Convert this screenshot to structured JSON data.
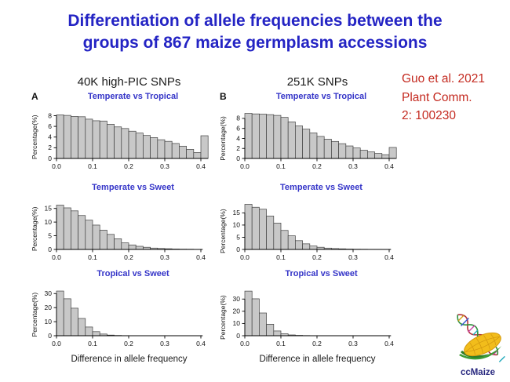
{
  "slide": {
    "title_line1": "Differentiation of allele frequencies between the",
    "title_line2": "groups of 867 maize germplasm accessions",
    "column_headers": [
      "40K high-PIC SNPs",
      "251K SNPs"
    ],
    "citation_lines": [
      "Guo et al. 2021",
      "Plant Comm.",
      "2: 100230"
    ],
    "xlabel": "Difference in allele frequency",
    "logo_text": "ccMaize"
  },
  "colors": {
    "title": "#2424c4",
    "subtitle": "#3535c8",
    "citation": "#c42a20",
    "bar_fill": "#c8c8c8",
    "bar_stroke": "#404040",
    "axis": "#000000",
    "tick_text": "#111111",
    "logo_text": "#2a2a80"
  },
  "chart_data": [
    {
      "type": "bar",
      "panel_label": "A",
      "group": "40K high-PIC SNPs",
      "title": "Temperate vs Tropical",
      "ylabel": "Percentage(%)",
      "bin_start": 0,
      "bin_width": 0.02,
      "values": [
        8.15,
        8.05,
        7.85,
        7.8,
        7.35,
        7.05,
        7.0,
        6.4,
        5.9,
        5.6,
        5.1,
        4.75,
        4.3,
        3.9,
        3.5,
        3.2,
        2.8,
        2.3,
        1.7,
        1.1,
        4.25
      ],
      "yticks": [
        0,
        2,
        4,
        6,
        8
      ],
      "ylim": [
        0,
        8.8
      ],
      "xticks": [
        0,
        0.1,
        0.2,
        0.3,
        0.4
      ],
      "x_axis_end": 0.42
    },
    {
      "type": "bar",
      "panel_label": "B",
      "group": "251K SNPs",
      "title": "Temperate vs Tropical",
      "ylabel": "Percentage(%)",
      "bin_start": 0,
      "bin_width": 0.02,
      "values": [
        9.0,
        8.9,
        8.85,
        8.75,
        8.6,
        8.2,
        7.3,
        6.5,
        5.85,
        5.1,
        4.4,
        3.85,
        3.4,
        2.95,
        2.5,
        2.1,
        1.65,
        1.3,
        1.0,
        0.75,
        2.2
      ],
      "yticks": [
        0,
        2,
        4,
        6,
        8
      ],
      "ylim": [
        0,
        9.4
      ],
      "xticks": [
        0,
        0.1,
        0.2,
        0.3,
        0.4
      ],
      "x_axis_end": 0.42
    },
    {
      "type": "bar",
      "panel_label": "",
      "group": "40K high-PIC SNPs",
      "title": "Temperate vs Sweet",
      "ylabel": "Percentage(%)",
      "bin_start": 0,
      "bin_width": 0.02,
      "values": [
        16.2,
        15.2,
        14.1,
        12.4,
        10.7,
        8.9,
        7.05,
        5.5,
        3.9,
        2.4,
        1.65,
        1.15,
        0.8,
        0.5,
        0.35,
        0.25,
        0.15,
        0.1,
        0.08
      ],
      "yticks": [
        0,
        5,
        10,
        15
      ],
      "ylim": [
        0,
        17.2
      ],
      "xticks": [
        0,
        0.1,
        0.2,
        0.3,
        0.4
      ],
      "x_axis_end": 0.405
    },
    {
      "type": "bar",
      "panel_label": "",
      "group": "251K SNPs",
      "title": "Temperate vs Sweet",
      "ylabel": "Percentage(%)",
      "bin_start": 0,
      "bin_width": 0.02,
      "values": [
        18.5,
        17.3,
        16.5,
        13.7,
        10.8,
        7.8,
        5.6,
        3.6,
        2.3,
        1.4,
        0.9,
        0.55,
        0.35,
        0.25,
        0.15,
        0.1,
        0.08,
        0.05,
        0.05
      ],
      "yticks": [
        0,
        5,
        10,
        15
      ],
      "ylim": [
        0,
        19.3
      ],
      "xticks": [
        0,
        0.1,
        0.2,
        0.3,
        0.4
      ],
      "x_axis_end": 0.405
    },
    {
      "type": "bar",
      "panel_label": "",
      "group": "40K high-PIC SNPs",
      "title": "Tropical vs Sweet",
      "ylabel": "Percentage(%)",
      "bin_start": 0,
      "bin_width": 0.02,
      "values": [
        31.8,
        26.3,
        19.6,
        12.3,
        6.2,
        2.9,
        1.2,
        0.45,
        0.2,
        0.1
      ],
      "yticks": [
        0,
        10,
        20,
        30
      ],
      "ylim": [
        0,
        33.5
      ],
      "xticks": [
        0,
        0.1,
        0.2,
        0.3,
        0.4
      ],
      "x_axis_end": 0.405
    },
    {
      "type": "bar",
      "panel_label": "",
      "group": "251K SNPs",
      "title": "Tropical vs Sweet",
      "ylabel": "Percentage(%)",
      "bin_start": 0,
      "bin_width": 0.02,
      "values": [
        36.5,
        30.2,
        18.6,
        9.4,
        3.9,
        1.6,
        0.65,
        0.3,
        0.15,
        0.05
      ],
      "yticks": [
        0,
        10,
        20,
        30
      ],
      "ylim": [
        0,
        38.5
      ],
      "xticks": [
        0,
        0.1,
        0.2,
        0.3,
        0.4
      ],
      "x_axis_end": 0.405
    }
  ]
}
